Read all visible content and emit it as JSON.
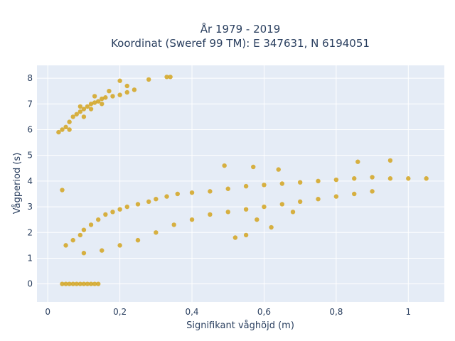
{
  "chart_data": {
    "type": "scatter",
    "title_line1": "År 1979 - 2019",
    "title_line2": "Koordinat (Sweref 99 TM): E 347631, N 6194051",
    "xlabel": "Signifikant våghöjd (m)",
    "ylabel": "Vågperiod (s)",
    "xlim": [
      -0.03,
      1.1
    ],
    "ylim": [
      -0.7,
      8.5
    ],
    "x_ticks": [
      0,
      0.2,
      0.4,
      0.6,
      0.8,
      1
    ],
    "x_tick_labels": [
      "0",
      "0,2",
      "0,4",
      "0,6",
      "0,8",
      "1"
    ],
    "y_ticks": [
      0,
      1,
      2,
      3,
      4,
      5,
      6,
      7,
      8
    ],
    "y_tick_labels": [
      "0",
      "1",
      "2",
      "3",
      "4",
      "5",
      "6",
      "7",
      "8"
    ],
    "grid": true,
    "colors": {
      "marker": "#d4a420",
      "plot_bg": "#e5ecf6",
      "grid": "#ffffff",
      "text": "#2a3f5f"
    },
    "series": [
      {
        "points": [
          [
            0.04,
            0
          ],
          [
            0.06,
            0
          ],
          [
            0.08,
            0
          ],
          [
            0.1,
            0
          ],
          [
            0.12,
            0
          ],
          [
            0.14,
            0
          ],
          [
            0.05,
            0
          ],
          [
            0.07,
            0
          ],
          [
            0.09,
            0
          ],
          [
            0.11,
            0
          ],
          [
            0.13,
            0
          ],
          [
            0.04,
            3.65
          ],
          [
            0.03,
            5.9
          ],
          [
            0.04,
            6.0
          ],
          [
            0.05,
            6.1
          ],
          [
            0.06,
            6.3
          ],
          [
            0.07,
            6.5
          ],
          [
            0.08,
            6.6
          ],
          [
            0.09,
            6.7
          ],
          [
            0.1,
            6.8
          ],
          [
            0.11,
            6.9
          ],
          [
            0.12,
            7.0
          ],
          [
            0.13,
            7.05
          ],
          [
            0.14,
            7.1
          ],
          [
            0.15,
            7.2
          ],
          [
            0.16,
            7.25
          ],
          [
            0.18,
            7.3
          ],
          [
            0.2,
            7.35
          ],
          [
            0.22,
            7.45
          ],
          [
            0.24,
            7.55
          ],
          [
            0.2,
            7.9
          ],
          [
            0.28,
            7.95
          ],
          [
            0.34,
            8.05
          ],
          [
            0.1,
            6.5
          ],
          [
            0.12,
            6.8
          ],
          [
            0.15,
            7.0
          ],
          [
            0.06,
            6.0
          ],
          [
            0.09,
            6.9
          ],
          [
            0.13,
            7.3
          ],
          [
            0.17,
            7.5
          ],
          [
            0.22,
            7.7
          ],
          [
            0.05,
            1.5
          ],
          [
            0.07,
            1.7
          ],
          [
            0.09,
            1.9
          ],
          [
            0.1,
            2.1
          ],
          [
            0.12,
            2.3
          ],
          [
            0.14,
            2.5
          ],
          [
            0.16,
            2.7
          ],
          [
            0.18,
            2.8
          ],
          [
            0.2,
            2.9
          ],
          [
            0.22,
            3.0
          ],
          [
            0.25,
            3.1
          ],
          [
            0.28,
            3.2
          ],
          [
            0.3,
            3.3
          ],
          [
            0.33,
            3.4
          ],
          [
            0.36,
            3.5
          ],
          [
            0.4,
            3.55
          ],
          [
            0.45,
            3.6
          ],
          [
            0.5,
            3.7
          ],
          [
            0.55,
            3.8
          ],
          [
            0.6,
            3.85
          ],
          [
            0.65,
            3.9
          ],
          [
            0.7,
            3.95
          ],
          [
            0.75,
            4.0
          ],
          [
            0.8,
            4.05
          ],
          [
            0.85,
            4.1
          ],
          [
            0.9,
            4.15
          ],
          [
            0.95,
            4.1
          ],
          [
            1.0,
            4.1
          ],
          [
            1.05,
            4.1
          ],
          [
            0.1,
            1.2
          ],
          [
            0.15,
            1.3
          ],
          [
            0.2,
            1.5
          ],
          [
            0.25,
            1.7
          ],
          [
            0.3,
            2.0
          ],
          [
            0.35,
            2.3
          ],
          [
            0.4,
            2.5
          ],
          [
            0.45,
            2.7
          ],
          [
            0.5,
            2.8
          ],
          [
            0.55,
            2.9
          ],
          [
            0.6,
            3.0
          ],
          [
            0.65,
            3.1
          ],
          [
            0.7,
            3.2
          ],
          [
            0.75,
            3.3
          ],
          [
            0.8,
            3.4
          ],
          [
            0.85,
            3.5
          ],
          [
            0.9,
            3.6
          ],
          [
            0.95,
            4.8
          ],
          [
            0.86,
            4.75
          ],
          [
            0.64,
            4.45
          ],
          [
            0.57,
            4.55
          ],
          [
            0.49,
            4.6
          ],
          [
            0.55,
            1.9
          ],
          [
            0.52,
            1.8
          ],
          [
            0.62,
            2.2
          ],
          [
            0.58,
            2.5
          ],
          [
            0.68,
            2.8
          ],
          [
            0.33,
            8.05
          ]
        ]
      }
    ]
  }
}
